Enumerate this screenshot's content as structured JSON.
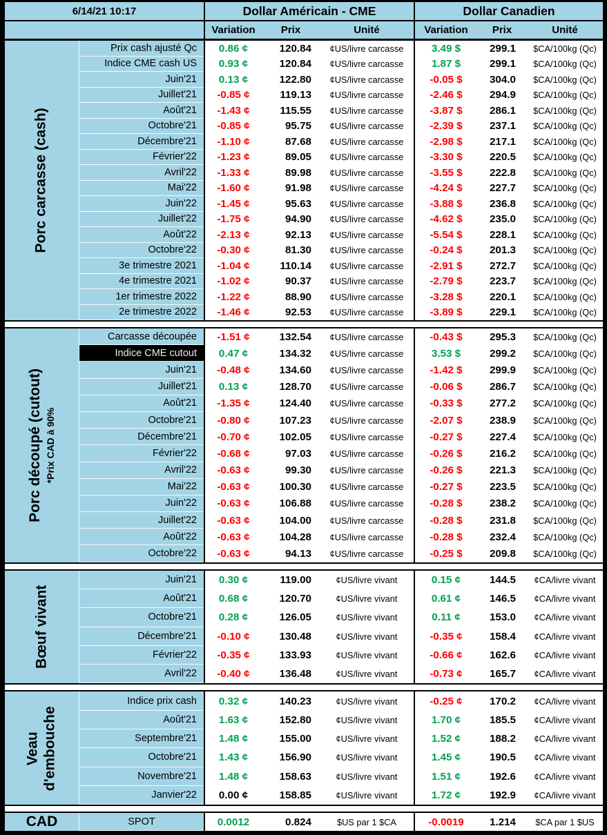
{
  "meta": {
    "datetime": "6/14/21 10:17"
  },
  "header": {
    "us_title": "Dollar Américain - CME",
    "ca_title": "Dollar Canadien",
    "col_variation": "Variation",
    "col_prix": "Prix",
    "col_unite": "Unité"
  },
  "colors": {
    "panel_blue": "#A3D4E5",
    "positive_green": "#00A152",
    "negative_red": "#FF0000",
    "highlight_black": "#000000",
    "grid_black": "#000000"
  },
  "sections": [
    {
      "id": "porc-carcasse",
      "label_lines": [
        "Porc carcasse (cash)"
      ],
      "rows": [
        {
          "label": "Prix cash ajusté Qc",
          "us_var": "0.86 ¢",
          "us_prix": "120.84",
          "us_unit": "¢US/livre carcasse",
          "ca_var": "3.49 $",
          "ca_prix": "299.1",
          "ca_unit": "$CA/100kg (Qc)"
        },
        {
          "label": "Indice CME cash US",
          "us_var": "0.93 ¢",
          "us_prix": "120.84",
          "us_unit": "¢US/livre carcasse",
          "ca_var": "1.87 $",
          "ca_prix": "299.1",
          "ca_unit": "$CA/100kg (Qc)"
        },
        {
          "label": "Juin'21",
          "us_var": "0.13 ¢",
          "us_prix": "122.80",
          "us_unit": "¢US/livre carcasse",
          "ca_var": "-0.05 $",
          "ca_prix": "304.0",
          "ca_unit": "$CA/100kg (Qc)"
        },
        {
          "label": "Juillet'21",
          "us_var": "-0.85 ¢",
          "us_prix": "119.13",
          "us_unit": "¢US/livre carcasse",
          "ca_var": "-2.46 $",
          "ca_prix": "294.9",
          "ca_unit": "$CA/100kg (Qc)"
        },
        {
          "label": "Août'21",
          "us_var": "-1.43 ¢",
          "us_prix": "115.55",
          "us_unit": "¢US/livre carcasse",
          "ca_var": "-3.87 $",
          "ca_prix": "286.1",
          "ca_unit": "$CA/100kg (Qc)"
        },
        {
          "label": "Octobre'21",
          "us_var": "-0.85 ¢",
          "us_prix": "95.75",
          "us_unit": "¢US/livre carcasse",
          "ca_var": "-2.39 $",
          "ca_prix": "237.1",
          "ca_unit": "$CA/100kg (Qc)"
        },
        {
          "label": "Décembre'21",
          "us_var": "-1.10 ¢",
          "us_prix": "87.68",
          "us_unit": "¢US/livre carcasse",
          "ca_var": "-2.98 $",
          "ca_prix": "217.1",
          "ca_unit": "$CA/100kg (Qc)"
        },
        {
          "label": "Février'22",
          "us_var": "-1.23 ¢",
          "us_prix": "89.05",
          "us_unit": "¢US/livre carcasse",
          "ca_var": "-3.30 $",
          "ca_prix": "220.5",
          "ca_unit": "$CA/100kg (Qc)"
        },
        {
          "label": "Avril'22",
          "us_var": "-1.33 ¢",
          "us_prix": "89.98",
          "us_unit": "¢US/livre carcasse",
          "ca_var": "-3.55 $",
          "ca_prix": "222.8",
          "ca_unit": "$CA/100kg (Qc)"
        },
        {
          "label": "Mai'22",
          "us_var": "-1.60 ¢",
          "us_prix": "91.98",
          "us_unit": "¢US/livre carcasse",
          "ca_var": "-4.24 $",
          "ca_prix": "227.7",
          "ca_unit": "$CA/100kg (Qc)"
        },
        {
          "label": "Juin'22",
          "us_var": "-1.45 ¢",
          "us_prix": "95.63",
          "us_unit": "¢US/livre carcasse",
          "ca_var": "-3.88 $",
          "ca_prix": "236.8",
          "ca_unit": "$CA/100kg (Qc)"
        },
        {
          "label": "Juillet'22",
          "us_var": "-1.75 ¢",
          "us_prix": "94.90",
          "us_unit": "¢US/livre carcasse",
          "ca_var": "-4.62 $",
          "ca_prix": "235.0",
          "ca_unit": "$CA/100kg (Qc)"
        },
        {
          "label": "Août'22",
          "us_var": "-2.13 ¢",
          "us_prix": "92.13",
          "us_unit": "¢US/livre carcasse",
          "ca_var": "-5.54 $",
          "ca_prix": "228.1",
          "ca_unit": "$CA/100kg (Qc)"
        },
        {
          "label": "Octobre'22",
          "us_var": "-0.30 ¢",
          "us_prix": "81.30",
          "us_unit": "¢US/livre carcasse",
          "ca_var": "-0.24 $",
          "ca_prix": "201.3",
          "ca_unit": "$CA/100kg (Qc)"
        },
        {
          "label": "3e trimestre 2021",
          "us_var": "-1.04 ¢",
          "us_prix": "110.14",
          "us_unit": "¢US/livre carcasse",
          "ca_var": "-2.91 $",
          "ca_prix": "272.7",
          "ca_unit": "$CA/100kg (Qc)"
        },
        {
          "label": "4e trimestre 2021",
          "us_var": "-1.02 ¢",
          "us_prix": "90.37",
          "us_unit": "¢US/livre carcasse",
          "ca_var": "-2.79 $",
          "ca_prix": "223.7",
          "ca_unit": "$CA/100kg (Qc)"
        },
        {
          "label": "1er trimestre 2022",
          "us_var": "-1.22 ¢",
          "us_prix": "88.90",
          "us_unit": "¢US/livre carcasse",
          "ca_var": "-3.28 $",
          "ca_prix": "220.1",
          "ca_unit": "$CA/100kg (Qc)"
        },
        {
          "label": "2e trimestre 2022",
          "us_var": "-1.46 ¢",
          "us_prix": "92.53",
          "us_unit": "¢US/livre carcasse",
          "ca_var": "-3.89 $",
          "ca_prix": "229.1",
          "ca_unit": "$CA/100kg (Qc)"
        }
      ]
    },
    {
      "id": "porc-decoupe",
      "label_lines": [
        "Porc découpé (cutout)"
      ],
      "sublabel": "*Prix CAD à 90%",
      "rows": [
        {
          "label": "Carcasse découpée",
          "us_var": "-1.51 ¢",
          "us_prix": "132.54",
          "us_unit": "¢US/livre carcasse",
          "ca_var": "-0.43 $",
          "ca_prix": "295.3",
          "ca_unit": "$CA/100kg (Qc)"
        },
        {
          "label": "Indice CME cutout",
          "highlight": true,
          "us_var": "0.47 ¢",
          "us_prix": "134.32",
          "us_unit": "¢US/livre carcasse",
          "ca_var": "3.53 $",
          "ca_prix": "299.2",
          "ca_unit": "$CA/100kg (Qc)"
        },
        {
          "label": "Juin'21",
          "us_var": "-0.48 ¢",
          "us_prix": "134.60",
          "us_unit": "¢US/livre carcasse",
          "ca_var": "-1.42 $",
          "ca_prix": "299.9",
          "ca_unit": "$CA/100kg (Qc)"
        },
        {
          "label": "Juillet'21",
          "us_var": "0.13 ¢",
          "us_prix": "128.70",
          "us_unit": "¢US/livre carcasse",
          "ca_var": "-0.06 $",
          "ca_prix": "286.7",
          "ca_unit": "$CA/100kg (Qc)"
        },
        {
          "label": "Août'21",
          "us_var": "-1.35 ¢",
          "us_prix": "124.40",
          "us_unit": "¢US/livre carcasse",
          "ca_var": "-0.33 $",
          "ca_prix": "277.2",
          "ca_unit": "$CA/100kg (Qc)"
        },
        {
          "label": "Octobre'21",
          "us_var": "-0.80 ¢",
          "us_prix": "107.23",
          "us_unit": "¢US/livre carcasse",
          "ca_var": "-2.07 $",
          "ca_prix": "238.9",
          "ca_unit": "$CA/100kg (Qc)"
        },
        {
          "label": "Décembre'21",
          "us_var": "-0.70 ¢",
          "us_prix": "102.05",
          "us_unit": "¢US/livre carcasse",
          "ca_var": "-0.27 $",
          "ca_prix": "227.4",
          "ca_unit": "$CA/100kg (Qc)"
        },
        {
          "label": "Février'22",
          "us_var": "-0.68 ¢",
          "us_prix": "97.03",
          "us_unit": "¢US/livre carcasse",
          "ca_var": "-0.26 $",
          "ca_prix": "216.2",
          "ca_unit": "$CA/100kg (Qc)"
        },
        {
          "label": "Avril'22",
          "us_var": "-0.63 ¢",
          "us_prix": "99.30",
          "us_unit": "¢US/livre carcasse",
          "ca_var": "-0.26 $",
          "ca_prix": "221.3",
          "ca_unit": "$CA/100kg (Qc)"
        },
        {
          "label": "Mai'22",
          "us_var": "-0.63 ¢",
          "us_prix": "100.30",
          "us_unit": "¢US/livre carcasse",
          "ca_var": "-0.27 $",
          "ca_prix": "223.5",
          "ca_unit": "$CA/100kg (Qc)"
        },
        {
          "label": "Juin'22",
          "us_var": "-0.63 ¢",
          "us_prix": "106.88",
          "us_unit": "¢US/livre carcasse",
          "ca_var": "-0.28 $",
          "ca_prix": "238.2",
          "ca_unit": "$CA/100kg (Qc)"
        },
        {
          "label": "Juillet'22",
          "us_var": "-0.63 ¢",
          "us_prix": "104.00",
          "us_unit": "¢US/livre carcasse",
          "ca_var": "-0.28 $",
          "ca_prix": "231.8",
          "ca_unit": "$CA/100kg (Qc)"
        },
        {
          "label": "Août'22",
          "us_var": "-0.63 ¢",
          "us_prix": "104.28",
          "us_unit": "¢US/livre carcasse",
          "ca_var": "-0.28 $",
          "ca_prix": "232.4",
          "ca_unit": "$CA/100kg (Qc)"
        },
        {
          "label": "Octobre'22",
          "us_var": "-0.63 ¢",
          "us_prix": "94.13",
          "us_unit": "¢US/livre carcasse",
          "ca_var": "-0.25 $",
          "ca_prix": "209.8",
          "ca_unit": "$CA/100kg (Qc)"
        }
      ]
    },
    {
      "id": "boeuf-vivant",
      "label_lines": [
        "Bœuf vivant"
      ],
      "rows": [
        {
          "label": "Juin'21",
          "us_var": "0.30 ¢",
          "us_prix": "119.00",
          "us_unit": "¢US/livre vivant",
          "ca_var": "0.15 ¢",
          "ca_prix": "144.5",
          "ca_unit": "¢CA/livre vivant"
        },
        {
          "label": "Août'21",
          "us_var": "0.68 ¢",
          "us_prix": "120.70",
          "us_unit": "¢US/livre vivant",
          "ca_var": "0.61 ¢",
          "ca_prix": "146.5",
          "ca_unit": "¢CA/livre vivant"
        },
        {
          "label": "Octobre'21",
          "us_var": "0.28 ¢",
          "us_prix": "126.05",
          "us_unit": "¢US/livre vivant",
          "ca_var": "0.11 ¢",
          "ca_prix": "153.0",
          "ca_unit": "¢CA/livre vivant"
        },
        {
          "label": "Décembre'21",
          "us_var": "-0.10 ¢",
          "us_prix": "130.48",
          "us_unit": "¢US/livre vivant",
          "ca_var": "-0.35 ¢",
          "ca_prix": "158.4",
          "ca_unit": "¢CA/livre vivant"
        },
        {
          "label": "Février'22",
          "us_var": "-0.35 ¢",
          "us_prix": "133.93",
          "us_unit": "¢US/livre vivant",
          "ca_var": "-0.66 ¢",
          "ca_prix": "162.6",
          "ca_unit": "¢CA/livre vivant"
        },
        {
          "label": "Avril'22",
          "us_var": "-0.40 ¢",
          "us_prix": "136.48",
          "us_unit": "¢US/livre vivant",
          "ca_var": "-0.73 ¢",
          "ca_prix": "165.7",
          "ca_unit": "¢CA/livre vivant"
        }
      ]
    },
    {
      "id": "veau-embouche",
      "label_lines": [
        "Veau",
        "d'embouche"
      ],
      "rows": [
        {
          "label": "Indice prix cash",
          "us_var": "0.32 ¢",
          "us_prix": "140.23",
          "us_unit": "¢US/livre vivant",
          "ca_var": "-0.25 ¢",
          "ca_prix": "170.2",
          "ca_unit": "¢CA/livre vivant"
        },
        {
          "label": "Août'21",
          "us_var": "1.63 ¢",
          "us_prix": "152.80",
          "us_unit": "¢US/livre vivant",
          "ca_var": "1.70 ¢",
          "ca_prix": "185.5",
          "ca_unit": "¢CA/livre vivant"
        },
        {
          "label": "Septembre'21",
          "us_var": "1.48 ¢",
          "us_prix": "155.00",
          "us_unit": "¢US/livre vivant",
          "ca_var": "1.52 ¢",
          "ca_prix": "188.2",
          "ca_unit": "¢CA/livre vivant"
        },
        {
          "label": "Octobre'21",
          "us_var": "1.43 ¢",
          "us_prix": "156.90",
          "us_unit": "¢US/livre vivant",
          "ca_var": "1.45 ¢",
          "ca_prix": "190.5",
          "ca_unit": "¢CA/livre vivant"
        },
        {
          "label": "Novembre'21",
          "us_var": "1.48 ¢",
          "us_prix": "158.63",
          "us_unit": "¢US/livre vivant",
          "ca_var": "1.51 ¢",
          "ca_prix": "192.6",
          "ca_unit": "¢CA/livre vivant"
        },
        {
          "label": "Janvier'22",
          "us_var": "0.00 ¢",
          "us_prix": "158.85",
          "us_unit": "¢US/livre vivant",
          "ca_var": "1.72 ¢",
          "ca_prix": "192.9",
          "ca_unit": "¢CA/livre vivant"
        }
      ]
    },
    {
      "id": "cad",
      "label_lines": [
        "CAD"
      ],
      "horizontal_label": true,
      "rows": [
        {
          "label": "SPOT",
          "us_var": "0.0012",
          "us_prix": "0.824",
          "us_unit": "$US par 1 $CA",
          "ca_var": "-0.0019",
          "ca_prix": "1.214",
          "ca_unit": "$CA par 1 $US"
        }
      ]
    }
  ]
}
